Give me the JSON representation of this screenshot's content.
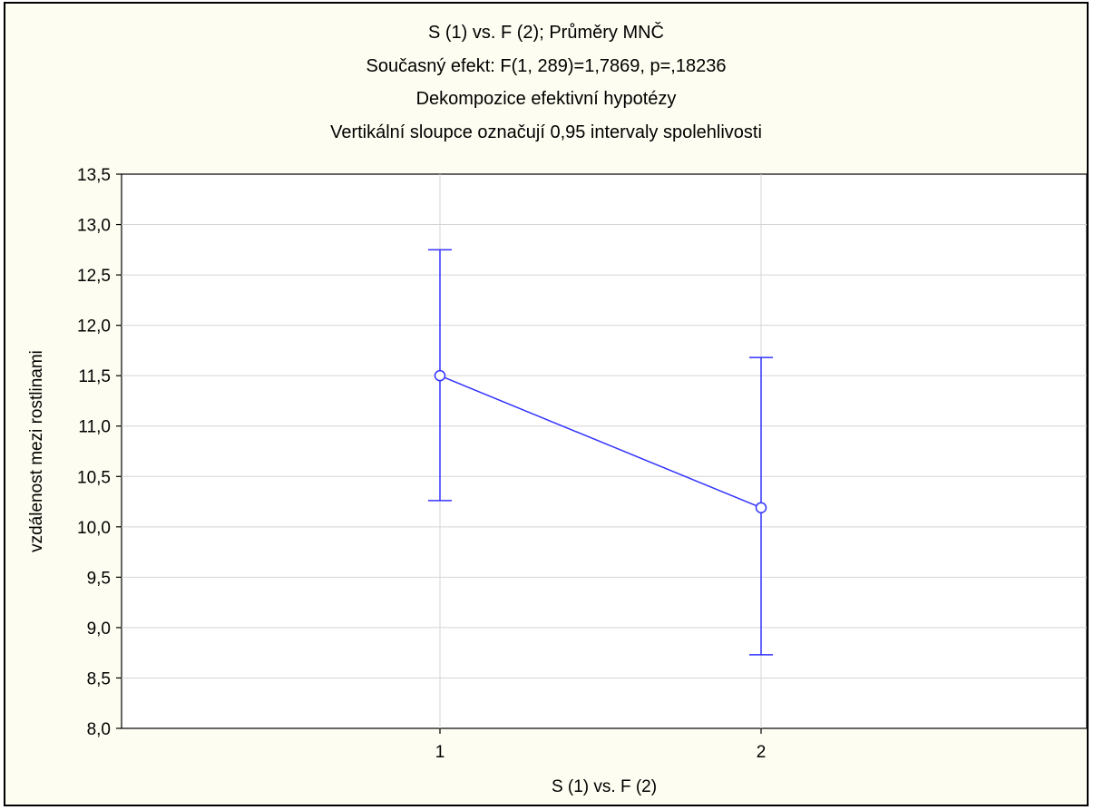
{
  "chart_data": {
    "type": "line",
    "title": [
      "S (1) vs. F (2); Průměry MNČ",
      "Současný efekt: F(1, 289)=1,7869, p=,18236",
      "Dekompozice efektivní hypotézy",
      "Vertikální sloupce označují 0,95 intervaly spolehlivosti"
    ],
    "xlabel": "S (1) vs. F (2)",
    "ylabel": "vzdálenost mezi rostlinami",
    "categories": [
      "1",
      "2"
    ],
    "series": [
      {
        "values": [
          11.5,
          10.19
        ],
        "ci_lower": [
          10.26,
          8.73
        ],
        "ci_upper": [
          12.75,
          11.68
        ],
        "color": "#3333ff"
      }
    ],
    "ylim": [
      8.0,
      13.5
    ],
    "yticks": [
      8.0,
      8.5,
      9.0,
      9.5,
      10.0,
      10.5,
      11.0,
      11.5,
      12.0,
      12.5,
      13.0,
      13.5
    ],
    "ytick_labels": [
      "8,0",
      "8,5",
      "9,0",
      "9,5",
      "10,0",
      "10,5",
      "11,0",
      "11,5",
      "12,0",
      "12,5",
      "13,0",
      "13,5"
    ],
    "grid": true,
    "background_color": "#fdfdf1",
    "plot_background_color": "#ffffff",
    "grid_color": "#d4d4d4"
  }
}
